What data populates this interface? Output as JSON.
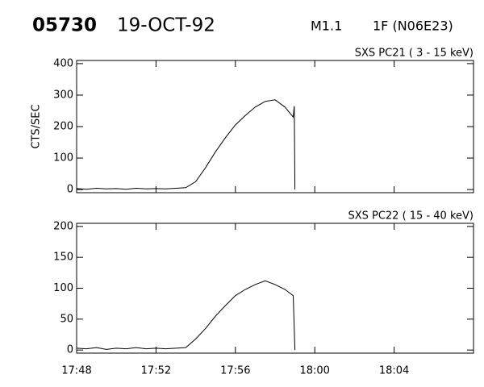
{
  "header": {
    "event": "05730",
    "date": "19-OCT-92",
    "class": "M1.1",
    "flare": "1F (N06E23)"
  },
  "chart_data": [
    {
      "type": "line",
      "title": "SXS PC21  (  3 - 15 keV)",
      "y_label": "CTS/SEC",
      "x": [
        "17:48:00",
        "17:48:30",
        "17:49:00",
        "17:49:30",
        "17:50:00",
        "17:50:30",
        "17:51:00",
        "17:51:30",
        "17:52:00",
        "17:52:30",
        "17:53:00",
        "17:53:30",
        "17:54:00",
        "17:54:30",
        "17:55:00",
        "17:55:30",
        "17:56:00",
        "17:56:30",
        "17:57:00",
        "17:57:30",
        "17:58:00",
        "17:58:30",
        "17:58:55",
        "17:58:58",
        "17:59:00"
      ],
      "series": [
        {
          "name": "SXS PC21",
          "color": "#000000",
          "values": [
            3,
            1,
            4,
            2,
            3,
            1,
            4,
            2,
            3,
            2,
            4,
            6,
            25,
            70,
            120,
            165,
            205,
            235,
            262,
            280,
            285,
            262,
            230,
            265,
            0
          ]
        }
      ],
      "xlim": [
        "17:48:00",
        "18:08:00"
      ],
      "ylim": [
        -10,
        410
      ],
      "yticks": [
        0,
        100,
        200,
        300,
        400
      ]
    },
    {
      "type": "line",
      "title": "SXS PC22  ( 15 - 40 keV)",
      "x": [
        "17:48:00",
        "17:48:30",
        "17:49:00",
        "17:49:30",
        "17:50:00",
        "17:50:30",
        "17:51:00",
        "17:51:30",
        "17:52:00",
        "17:52:30",
        "17:53:00",
        "17:53:30",
        "17:54:00",
        "17:54:30",
        "17:55:00",
        "17:55:30",
        "17:56:00",
        "17:56:30",
        "17:57:00",
        "17:57:30",
        "17:58:00",
        "17:58:30",
        "17:58:55",
        "17:59:00"
      ],
      "series": [
        {
          "name": "SXS PC22",
          "color": "#000000",
          "values": [
            3,
            2,
            4,
            1,
            3,
            2,
            4,
            2,
            3,
            2,
            3,
            4,
            18,
            35,
            55,
            72,
            88,
            98,
            106,
            112,
            106,
            98,
            88,
            0
          ]
        }
      ],
      "xlim": [
        "17:48:00",
        "18:08:00"
      ],
      "ylim": [
        -5,
        205
      ],
      "yticks": [
        0,
        50,
        100,
        150,
        200
      ],
      "xticks": [
        {
          "value": "17:48:00",
          "label": "17:48"
        },
        {
          "value": "17:52:00",
          "label": "17:52"
        },
        {
          "value": "17:56:00",
          "label": "17:56"
        },
        {
          "value": "18:00:00",
          "label": "18:00"
        },
        {
          "value": "18:04:00",
          "label": "18:04"
        }
      ]
    }
  ]
}
